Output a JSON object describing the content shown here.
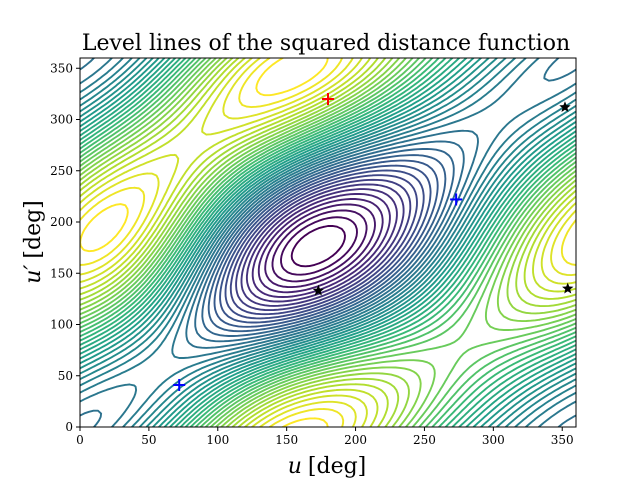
{
  "chart_data": {
    "type": "contour",
    "title": "Level lines of the squared distance function",
    "xlabel_main": "u",
    "xlabel_unit": "[deg]",
    "ylabel_main": "u′",
    "ylabel_unit": "[deg]",
    "xlim": [
      0,
      360
    ],
    "ylim": [
      0,
      360
    ],
    "xticks": [
      0,
      50,
      100,
      150,
      200,
      250,
      300,
      350
    ],
    "yticks": [
      0,
      50,
      100,
      150,
      200,
      250,
      300,
      350
    ],
    "grid": false,
    "colormap": "viridis",
    "markers": [
      {
        "type": "plus",
        "color": "#ff0000",
        "x": 180,
        "y": 320
      },
      {
        "type": "plus",
        "color": "#0000ff",
        "x": 273,
        "y": 222
      },
      {
        "type": "plus",
        "color": "#0000ff",
        "x": 72,
        "y": 41
      },
      {
        "type": "star",
        "color": "#000000",
        "x": 173,
        "y": 133
      },
      {
        "type": "star",
        "color": "#000000",
        "x": 352,
        "y": 312
      },
      {
        "type": "star",
        "color": "#000000",
        "x": 354,
        "y": 135
      }
    ]
  }
}
